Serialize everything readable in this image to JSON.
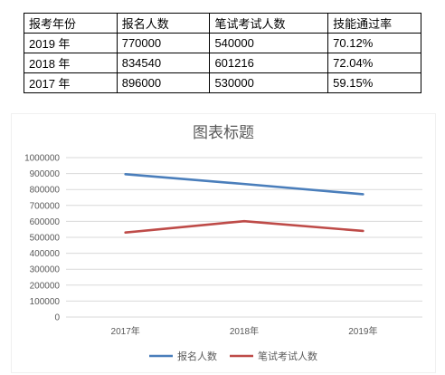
{
  "table": {
    "headers": [
      "报考年份",
      "报名人数",
      "笔试考试人数",
      "技能通过率"
    ],
    "rows": [
      [
        "2019 年",
        "770000",
        "540000",
        "70.12%"
      ],
      [
        "2018 年",
        "834540",
        "601216",
        "72.04%"
      ],
      [
        "2017 年",
        "896000",
        "530000",
        "59.15%"
      ]
    ]
  },
  "chart_data": {
    "type": "line",
    "title": "图表标题",
    "categories": [
      "2017年",
      "2018年",
      "2019年"
    ],
    "series": [
      {
        "name": "报名人数",
        "values": [
          896000,
          834540,
          770000
        ],
        "color": "#4a7ebb"
      },
      {
        "name": "笔试考试人数",
        "values": [
          530000,
          601216,
          540000
        ],
        "color": "#be4b48"
      }
    ],
    "ylim": [
      0,
      1000000
    ],
    "ytick_step": 100000,
    "grid": true,
    "legend": "bottom"
  }
}
